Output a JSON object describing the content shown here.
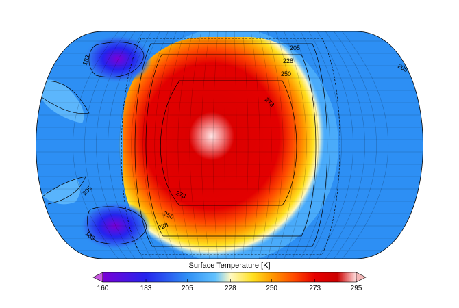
{
  "colorbar": {
    "title": "Surface Temperature [K]",
    "ticks": [
      160,
      183,
      205,
      228,
      250,
      273,
      295
    ],
    "min": 160,
    "max": 295,
    "colors": {
      "160": "#7a00d6",
      "183": "#2424ee",
      "205": "#2f8ff5",
      "220": "#62c2ff",
      "228": "#fff9c2",
      "240": "#ffe020",
      "250": "#ff9a00",
      "262": "#ff4a00",
      "273": "#e80000",
      "285": "#cc0000",
      "295": "#ffe0e0"
    },
    "extend_under_color": "#c85ae0",
    "extend_over_color": "#f4b8b8"
  },
  "contour_labels": [
    {
      "text": "205"
    },
    {
      "text": "228"
    },
    {
      "text": "250"
    },
    {
      "text": "273"
    },
    {
      "text": "205"
    },
    {
      "text": "183"
    },
    {
      "text": "205"
    },
    {
      "text": "183"
    },
    {
      "text": "273"
    },
    {
      "text": "250"
    },
    {
      "text": "228"
    }
  ]
}
